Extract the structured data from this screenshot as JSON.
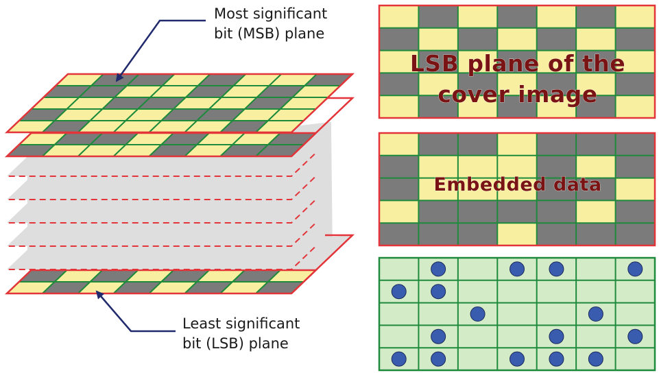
{
  "labels": {
    "msb": {
      "line1": "Most significant",
      "line2": "bit (MSB) plane"
    },
    "lsb": {
      "line1": "Least significant",
      "line2": "bit (LSB) plane"
    }
  },
  "grids": {
    "cover_lsb": {
      "caption_line1": "LSB plane of the",
      "caption_line2": "cover image",
      "pattern": [
        [
          1,
          0,
          1,
          0,
          1,
          0,
          1
        ],
        [
          0,
          1,
          0,
          1,
          0,
          1,
          0
        ],
        [
          1,
          0,
          1,
          0,
          1,
          0,
          1
        ],
        [
          0,
          1,
          0,
          1,
          0,
          1,
          0
        ],
        [
          1,
          0,
          1,
          0,
          1,
          0,
          1
        ]
      ]
    },
    "embedded": {
      "caption": "Embedded data",
      "pattern": [
        [
          1,
          0,
          0,
          1,
          0,
          0,
          0
        ],
        [
          0,
          1,
          1,
          1,
          0,
          1,
          0
        ],
        [
          0,
          1,
          1,
          1,
          0,
          0,
          1
        ],
        [
          1,
          0,
          0,
          0,
          0,
          1,
          0
        ],
        [
          0,
          0,
          0,
          1,
          0,
          0,
          0
        ]
      ]
    },
    "diff": {
      "pattern": [
        [
          0,
          1,
          0,
          1,
          1,
          0,
          1
        ],
        [
          1,
          1,
          0,
          0,
          0,
          0,
          0
        ],
        [
          0,
          0,
          1,
          0,
          0,
          1,
          0
        ],
        [
          0,
          1,
          0,
          0,
          1,
          0,
          1
        ],
        [
          1,
          1,
          0,
          1,
          1,
          1,
          0
        ]
      ]
    }
  },
  "colors": {
    "yellow": "#f8f0a0",
    "gray": "#7b7b7b",
    "green_line": "#1e8a3c",
    "red_border": "#e3343a",
    "light_green": "#d4ebc8",
    "dot": "#3a5cae",
    "plane_fill": "#dedede",
    "arrow": "#202a6c",
    "caption": "#7a1414"
  },
  "stack": {
    "msb_pattern": [
      [
        1,
        0,
        0,
        1,
        0,
        1,
        1,
        0
      ],
      [
        0,
        0,
        1,
        1,
        0,
        1,
        0,
        1
      ],
      [
        1,
        1,
        0,
        0,
        1,
        1,
        0,
        1
      ],
      [
        0,
        1,
        1,
        1,
        0,
        0,
        1,
        1
      ],
      [
        1,
        0,
        1,
        1,
        1,
        1,
        0,
        1
      ]
    ],
    "second_pattern": [
      [
        1,
        0,
        0,
        1,
        0,
        1,
        1,
        0
      ],
      [
        0,
        1,
        1,
        1,
        0,
        1,
        0,
        0
      ]
    ],
    "lsb_pattern": [
      [
        0,
        1,
        0,
        1,
        0,
        1,
        0,
        1
      ],
      [
        1,
        0,
        1,
        0,
        1,
        0,
        1,
        0
      ]
    ]
  }
}
